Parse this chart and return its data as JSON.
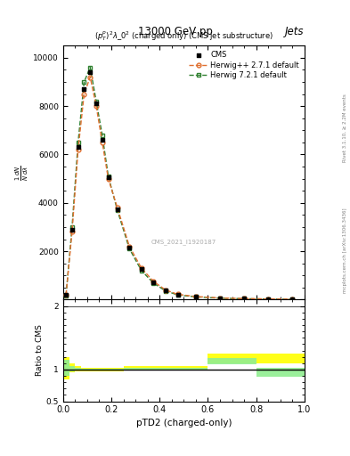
{
  "title": "13000 GeV pp",
  "title_right": "Jets",
  "subtitle": "$(p_T^p)^2\\lambda\\_0^2$ (charged only) (CMS jet substructure)",
  "ylabel_main": "$\\frac{1}{N}\\frac{dN}{d\\lambda}$",
  "ylabel_ratio": "Ratio to CMS",
  "xlabel": "pTD2 (charged-only)",
  "watermark": "CMS_2021_I1920187",
  "right_label": "mcplots.cern.ch [arXiv:1306.3436]",
  "right_label2": "Rivet 3.1.10, ≥ 2.2M events",
  "x_edges": [
    0.0,
    0.025,
    0.05,
    0.075,
    0.1,
    0.125,
    0.15,
    0.175,
    0.2,
    0.25,
    0.3,
    0.35,
    0.4,
    0.45,
    0.5,
    0.6,
    0.7,
    0.8,
    0.9,
    1.0
  ],
  "herwig_pp_y": [
    200,
    2800,
    6200,
    8500,
    9200,
    8000,
    6500,
    5000,
    3800,
    2200,
    1300,
    750,
    400,
    220,
    130,
    70,
    45,
    30,
    18
  ],
  "herwig7_y": [
    180,
    3000,
    6500,
    9000,
    9600,
    8200,
    6800,
    5100,
    3700,
    2100,
    1200,
    680,
    360,
    195,
    115,
    62,
    40,
    26,
    15
  ],
  "cms_y": [
    190,
    2900,
    6300,
    8700,
    9400,
    8100,
    6600,
    5050,
    3750,
    2150,
    1250,
    715,
    380,
    208,
    122,
    66,
    42,
    28,
    16
  ],
  "ratio_pp_lo": [
    0.85,
    0.95,
    0.97,
    0.97,
    0.97,
    0.97,
    0.97,
    0.97,
    0.97,
    1.0,
    1.0,
    1.0,
    1.0,
    1.0,
    1.0,
    1.1,
    1.1,
    1.1,
    1.1
  ],
  "ratio_pp_hi": [
    1.2,
    1.1,
    1.05,
    1.03,
    1.03,
    1.03,
    1.03,
    1.03,
    1.03,
    1.05,
    1.05,
    1.05,
    1.05,
    1.05,
    1.05,
    1.25,
    1.25,
    1.25,
    1.25
  ],
  "ratio_7_lo": [
    0.9,
    0.97,
    0.99,
    0.99,
    0.99,
    0.99,
    0.99,
    0.99,
    0.99,
    1.0,
    1.0,
    1.0,
    1.0,
    1.0,
    1.0,
    1.08,
    1.08,
    0.88,
    0.88
  ],
  "ratio_7_hi": [
    1.15,
    1.06,
    1.03,
    1.01,
    1.01,
    1.01,
    1.01,
    1.01,
    1.01,
    1.03,
    1.03,
    1.03,
    1.03,
    1.03,
    1.03,
    1.18,
    1.18,
    1.02,
    1.02
  ],
  "color_herwig_pp": "#E07030",
  "color_herwig7": "#308030",
  "color_cms": "#000000",
  "ylim_main": [
    0,
    10000
  ],
  "ylim_ratio": [
    0.5,
    2.0
  ],
  "xlim": [
    0.0,
    1.0
  ]
}
